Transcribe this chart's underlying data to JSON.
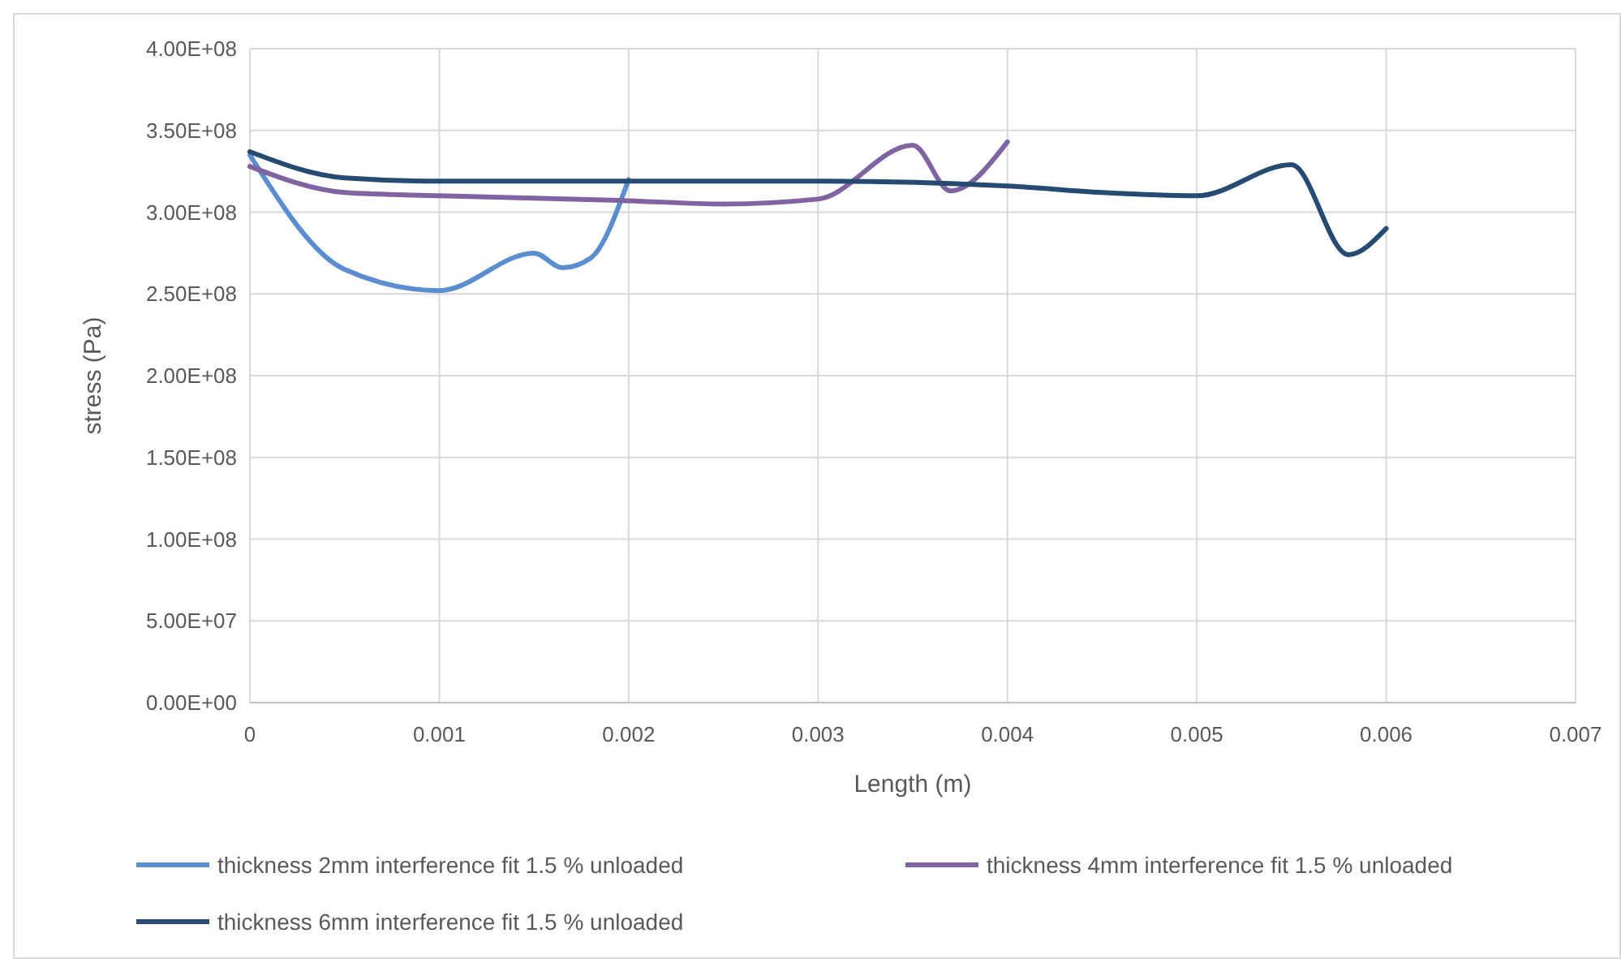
{
  "chart_data": {
    "type": "line",
    "xlabel": "Length (m)",
    "ylabel": "stress (Pa)",
    "xlim": [
      0,
      0.007
    ],
    "xticks": [
      0,
      0.001,
      0.002,
      0.003,
      0.004,
      0.005,
      0.006,
      0.007
    ],
    "ylim": [
      0,
      400000000
    ],
    "yticks": [
      {
        "value": 0,
        "label": "0.00E+00"
      },
      {
        "value": 50000000,
        "label": "5.00E+07"
      },
      {
        "value": 100000000,
        "label": "1.00E+08"
      },
      {
        "value": 150000000,
        "label": "1.50E+08"
      },
      {
        "value": 200000000,
        "label": "2.00E+08"
      },
      {
        "value": 250000000,
        "label": "2.50E+08"
      },
      {
        "value": 300000000,
        "label": "3.00E+08"
      },
      {
        "value": 350000000,
        "label": "3.50E+08"
      },
      {
        "value": 400000000,
        "label": "4.00E+08"
      }
    ],
    "grid": true,
    "legend": "bottom",
    "marker": "none",
    "line_style": "solid",
    "series": [
      {
        "name": "thickness 2mm interference fit 1.5 % unloaded",
        "color": "#5a8ed0",
        "x": [
          0,
          0.0005,
          0.001,
          0.0015,
          0.00165,
          0.0018,
          0.002
        ],
        "values": [
          335000000,
          265000000,
          252000000,
          275000000,
          266000000,
          272000000,
          320000000
        ]
      },
      {
        "name": "thickness 4mm interference fit 1.5 % unloaded",
        "color": "#8064a2",
        "x": [
          0,
          0.0005,
          0.001,
          0.002,
          0.0025,
          0.003,
          0.0035,
          0.0037,
          0.004
        ],
        "values": [
          328000000,
          312000000,
          310000000,
          307000000,
          305000000,
          308000000,
          341000000,
          313000000,
          343000000
        ]
      },
      {
        "name": "thickness 6mm interference fit 1.5 % unloaded",
        "color": "#264b73",
        "x": [
          0,
          0.0005,
          0.001,
          0.002,
          0.003,
          0.004,
          0.0045,
          0.005,
          0.0055,
          0.0058,
          0.006
        ],
        "values": [
          337000000,
          321000000,
          319000000,
          319000000,
          319000000,
          316000000,
          312000000,
          310000000,
          329000000,
          274000000,
          290000000
        ]
      }
    ]
  }
}
